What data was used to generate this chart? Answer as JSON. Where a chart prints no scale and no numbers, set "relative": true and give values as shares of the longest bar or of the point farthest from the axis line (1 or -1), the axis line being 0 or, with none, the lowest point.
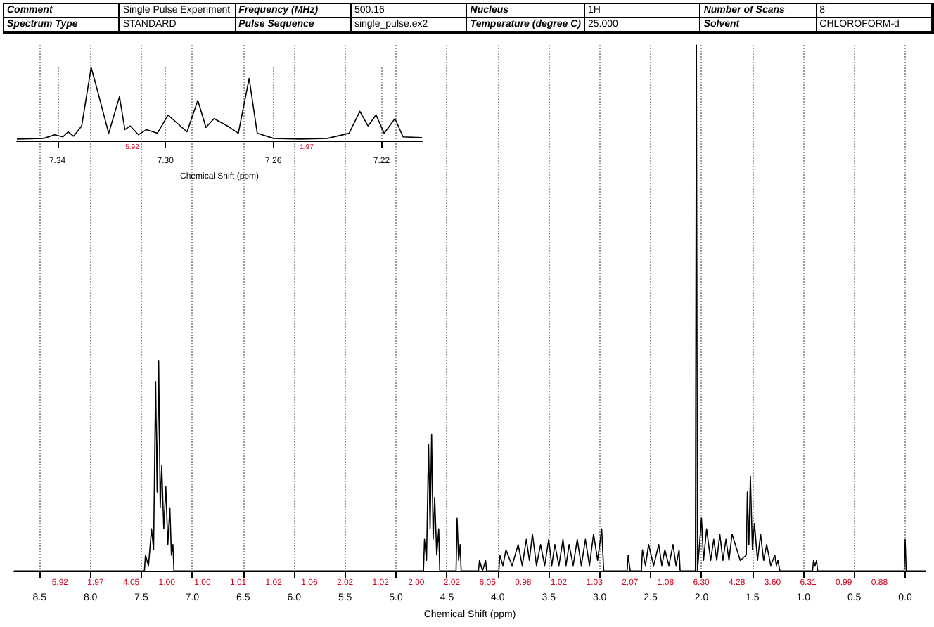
{
  "chart_data": [
    {
      "type": "line",
      "relative": true,
      "xlabel": "Chemical Shift (ppm)",
      "grid": "x",
      "xlim": [
        8.75,
        -0.2
      ],
      "xticks": [
        8.5,
        {
          "value": 8,
          "label": "8.0"
        },
        7.5,
        {
          "value": 7,
          "label": "7.0"
        },
        6.5,
        {
          "value": 6,
          "label": "6.0"
        },
        5.5,
        {
          "value": 5,
          "label": "5.0"
        },
        4.5,
        {
          "value": 4,
          "label": "4.0"
        },
        3.5,
        {
          "value": 3,
          "label": "3.0"
        },
        2.5,
        {
          "value": 2,
          "label": "2.0"
        },
        1.5,
        {
          "value": 1,
          "label": "1.0"
        },
        0.5,
        {
          "value": 0,
          "label": "0.0"
        }
      ],
      "series": [
        {
          "color": "#000000",
          "x": [
            8.75,
            7.47,
            7.46,
            7.43,
            7.4,
            7.38,
            7.36,
            7.345,
            7.33,
            7.315,
            7.3,
            7.28,
            7.26,
            7.24,
            7.22,
            7.205,
            7.19,
            7.18,
            4.73,
            4.72,
            4.7,
            4.68,
            4.665,
            4.65,
            4.635,
            4.62,
            4.6,
            4.58,
            4.57,
            4.41,
            4.4,
            4.385,
            4.37,
            4.36,
            4.19,
            4.18,
            4.15,
            4.12,
            4.11,
            3.99,
            3.98,
            3.95,
            3.92,
            3.86,
            3.8,
            3.76,
            3.72,
            3.69,
            3.66,
            3.62,
            3.58,
            3.54,
            3.5,
            3.47,
            3.44,
            3.4,
            3.36,
            3.33,
            3.3,
            3.26,
            3.22,
            3.18,
            3.14,
            3.1,
            3.06,
            3.02,
            2.98,
            2.96,
            2.73,
            2.72,
            2.7,
            2.59,
            2.58,
            2.55,
            2.52,
            2.47,
            2.42,
            2.39,
            2.36,
            2.32,
            2.28,
            2.25,
            2.22,
            2.21,
            2.06,
            2.05,
            2.04,
            2.0,
            1.98,
            1.95,
            1.91,
            1.88,
            1.85,
            1.82,
            1.79,
            1.76,
            1.73,
            1.7,
            1.62,
            1.56,
            1.55,
            1.535,
            1.52,
            1.5,
            1.48,
            1.45,
            1.42,
            1.39,
            1.36,
            1.32,
            1.28,
            1.265,
            1.25,
            1.23,
            0.91,
            0.9,
            0.885,
            0.87,
            0.86,
            0.01,
            0.0,
            -0.01,
            -0.2
          ],
          "values": [
            0,
            0,
            0.03,
            0.01,
            0.08,
            0.04,
            0.36,
            0.15,
            0.4,
            0.12,
            0.2,
            0.08,
            0.16,
            0.05,
            0.12,
            0.03,
            0.05,
            0,
            0,
            0.06,
            0.02,
            0.24,
            0.08,
            0.26,
            0.06,
            0.14,
            0.03,
            0.08,
            0,
            0,
            0.1,
            0.02,
            0.05,
            0,
            0,
            0.02,
            0,
            0.02,
            0,
            0,
            0.03,
            0.01,
            0.04,
            0.01,
            0.05,
            0.01,
            0.06,
            0.02,
            0.07,
            0.01,
            0.05,
            0.01,
            0.06,
            0.01,
            0.05,
            0.01,
            0.06,
            0.01,
            0.05,
            0.01,
            0.06,
            0.01,
            0.06,
            0.01,
            0.07,
            0.02,
            0.08,
            0,
            0,
            0.03,
            0,
            0,
            0.04,
            0.01,
            0.05,
            0.01,
            0.05,
            0.01,
            0.04,
            0.01,
            0.05,
            0.01,
            0.04,
            0,
            0,
            1.0,
            0,
            0.1,
            0.02,
            0.08,
            0.02,
            0.06,
            0.02,
            0.07,
            0.02,
            0.06,
            0.02,
            0.07,
            0.02,
            0.03,
            0.15,
            0.05,
            0.18,
            0.04,
            0.09,
            0.02,
            0.07,
            0.02,
            0.05,
            0.01,
            0.03,
            0.01,
            0.02,
            0,
            0,
            0.02,
            0.01,
            0.02,
            0,
            0,
            0.06,
            0,
            0
          ]
        }
      ],
      "annotations": [
        "5.92",
        "1.97",
        "4.05",
        "1.00",
        "1.00",
        "1.01",
        "1.02",
        "1.06",
        "2.02",
        "1.02",
        "2.00",
        "2.02",
        "6.05",
        "0.98",
        "1.02",
        "1.03",
        "2.07",
        "1.08",
        "6.30",
        "4.28",
        "3.60",
        "6.31",
        "0.99",
        "0.88"
      ]
    },
    {
      "type": "line",
      "relative": true,
      "xlabel": "Chemical Shift (ppm)",
      "grid": "x",
      "xlim": [
        7.355,
        7.205
      ],
      "xticks": [
        7.34,
        {
          "value": 7.3,
          "label": "7.30"
        },
        7.26,
        7.22
      ],
      "series": [
        {
          "color": "#000000",
          "x": [
            7.355,
            7.345,
            7.341,
            7.338,
            7.336,
            7.334,
            7.331,
            7.3275,
            7.326,
            7.321,
            7.317,
            7.315,
            7.313,
            7.31,
            7.307,
            7.303,
            7.299,
            7.296,
            7.292,
            7.288,
            7.285,
            7.282,
            7.277,
            7.273,
            7.269,
            7.266,
            7.26,
            7.25,
            7.24,
            7.232,
            7.228,
            7.225,
            7.222,
            7.219,
            7.215,
            7.212,
            7.205
          ],
          "values": [
            0.02,
            0.03,
            0.08,
            0.05,
            0.12,
            0.06,
            0.2,
            1.0,
            0.8,
            0.1,
            0.6,
            0.15,
            0.2,
            0.08,
            0.15,
            0.1,
            0.35,
            0.25,
            0.12,
            0.55,
            0.18,
            0.3,
            0.2,
            0.1,
            0.85,
            0.1,
            0.03,
            0.02,
            0.03,
            0.1,
            0.4,
            0.2,
            0.35,
            0.1,
            0.3,
            0.05,
            0.04
          ]
        }
      ],
      "annotations": [
        "5.92",
        "1.97"
      ]
    },
    {
      "type": "other",
      "annotations": [
        "Comment",
        "Single Pulse Experiment",
        "Frequency (MHz)",
        "500.16",
        "Nucleus",
        "1H",
        "Number of Scans",
        "8",
        "Spectrum Type",
        "STANDARD",
        "Pulse Sequence",
        "single_pulse.ex2",
        "Temperature (degree C)",
        "25.000",
        "Solvent",
        "CHLOROFORM-d"
      ]
    }
  ]
}
